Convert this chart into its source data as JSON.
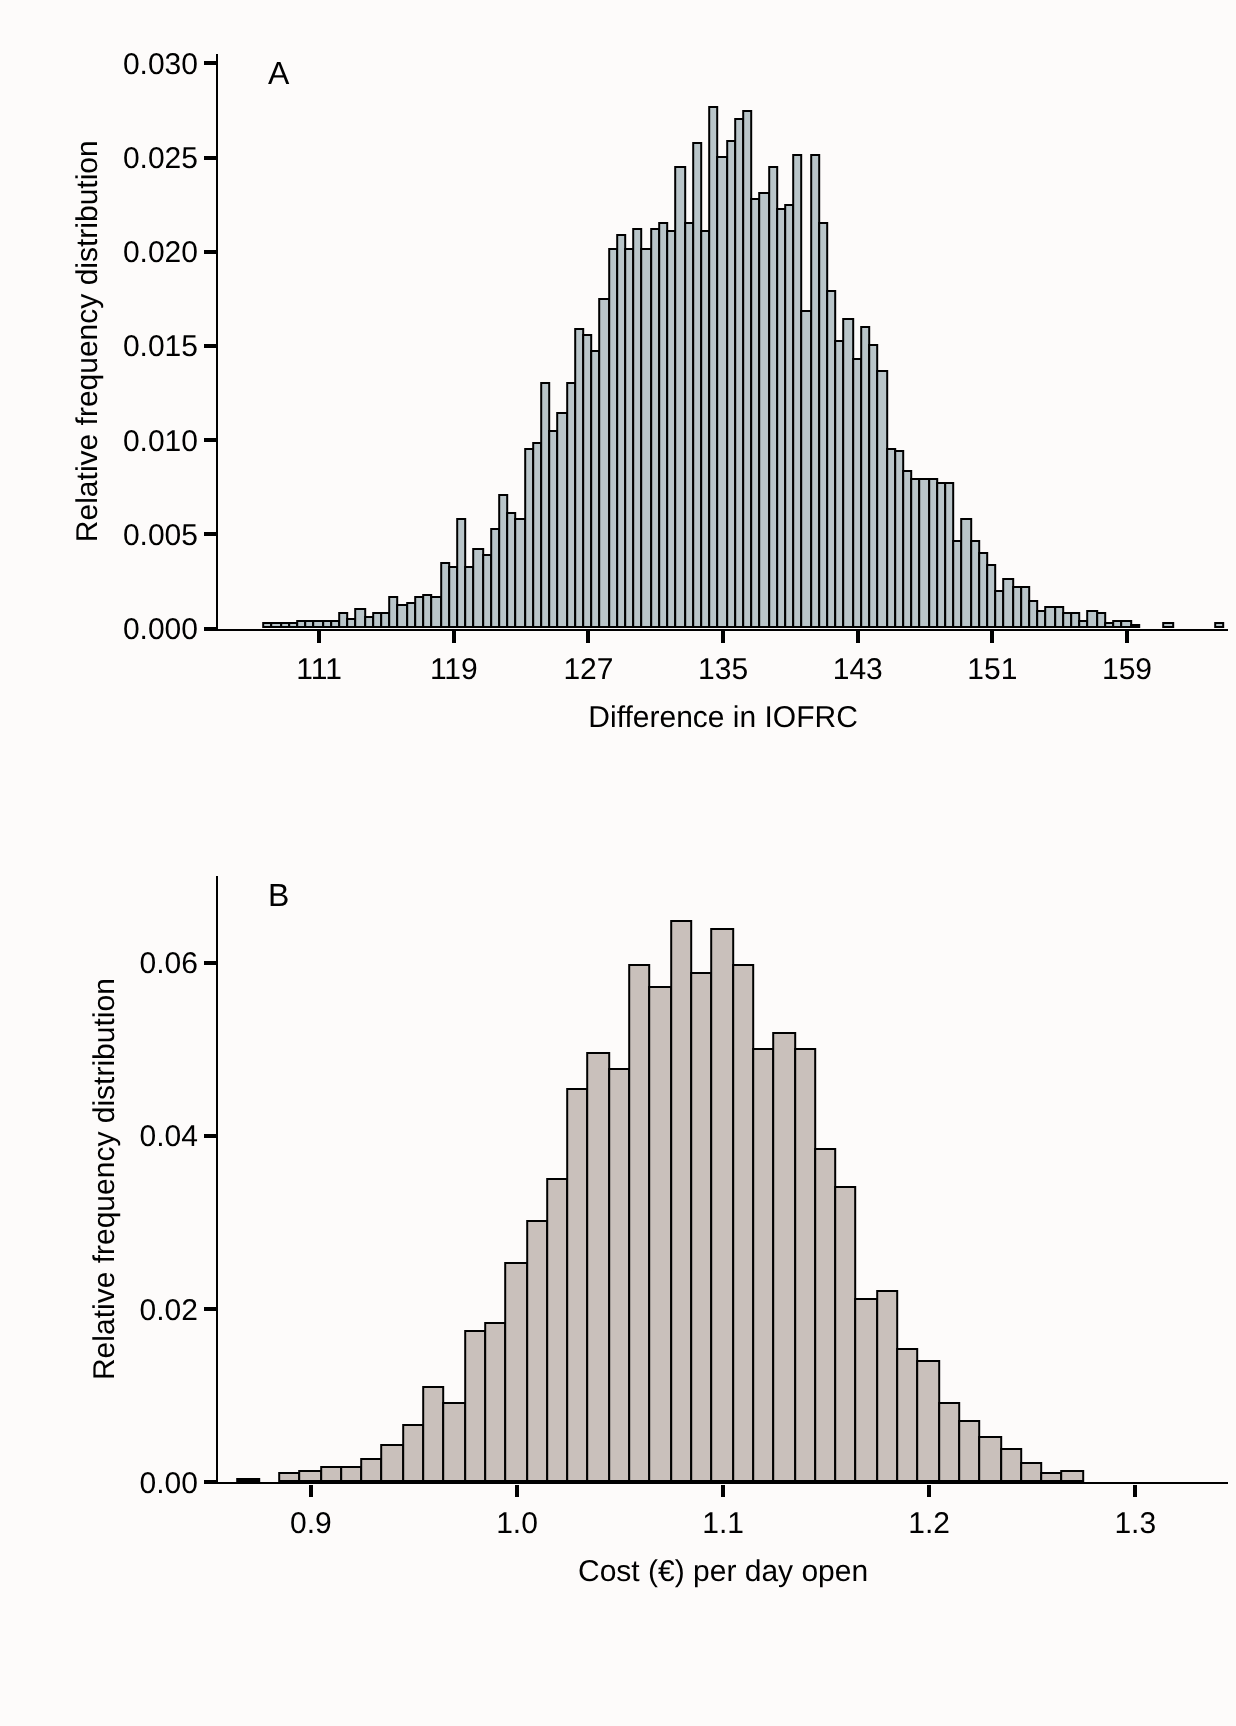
{
  "chart_data": [
    {
      "type": "histogram",
      "xlabel": "Difference in IOFRC",
      "ylabel": "Relative frequency distribution",
      "annotations": [
        "A"
      ],
      "color": "#b9c5c9",
      "bins": [
        107.75,
        108.25,
        108.75,
        109.25,
        109.75,
        110.25,
        110.75,
        111.25,
        111.75,
        112.25,
        112.75,
        113.25,
        113.75,
        114.25,
        114.75,
        115.25,
        115.75,
        116.25,
        116.75,
        117.25,
        117.75,
        118.25,
        118.75,
        119.25,
        119.75,
        120.25,
        120.75,
        121.25,
        121.75,
        122.25,
        122.75,
        123.25,
        123.75,
        124.25,
        124.75,
        125.25,
        125.75,
        126.25,
        126.75,
        127.25,
        127.75,
        128.25,
        128.75,
        129.25,
        129.75,
        130.25,
        130.75,
        131.25,
        131.75,
        132.25,
        132.75,
        133.25,
        133.75,
        134.25,
        134.75,
        135.25,
        135.75,
        136.25,
        136.75,
        137.25,
        137.75,
        138.25,
        138.75,
        139.25,
        139.75,
        140.25,
        140.75,
        141.25,
        141.75,
        142.25,
        142.75,
        143.25,
        143.75,
        144.25,
        144.75,
        145.25,
        145.75,
        146.25,
        146.75,
        147.25,
        147.75,
        148.25,
        148.75,
        149.25,
        149.75,
        150.25,
        150.75,
        151.25,
        151.75,
        152.25,
        152.75,
        153.25,
        153.75,
        154.25,
        154.75,
        155.25,
        155.75,
        156.25,
        156.75,
        157.25,
        157.75,
        158.25,
        158.75,
        159.25,
        159.75,
        161.25,
        161.75,
        164.25,
        164.75
      ],
      "values": [
        0.0002,
        0.0002,
        0.0002,
        0.0002,
        0.0004,
        0.0003,
        0.0004,
        0.0004,
        0.0003,
        0.0008,
        0.0005,
        0.001,
        0.0006,
        0.0008,
        0.0008,
        0.0016,
        0.0012,
        0.0013,
        0.0016,
        0.0017,
        0.0016,
        0.0034,
        0.0032,
        0.0058,
        0.0032,
        0.0042,
        0.0038,
        0.0052,
        0.007,
        0.0061,
        0.0058,
        0.0095,
        0.0098,
        0.013,
        0.0104,
        0.0114,
        0.013,
        0.0158,
        0.0155,
        0.0147,
        0.0174,
        0.0201,
        0.0208,
        0.0201,
        0.0212,
        0.0201,
        0.0212,
        0.0215,
        0.0211,
        0.0245,
        0.0215,
        0.0257,
        0.0211,
        0.0276,
        0.025,
        0.0258,
        0.027,
        0.0274,
        0.0228,
        0.0231,
        0.0245,
        0.0222,
        0.0224,
        0.0251,
        0.0168,
        0.0251,
        0.0215,
        0.0179,
        0.0152,
        0.0164,
        0.0143,
        0.016,
        0.015,
        0.0136,
        0.0095,
        0.0094,
        0.0083,
        0.0079,
        0.0079,
        0.0079,
        0.0077,
        0.0077,
        0.0046,
        0.0058,
        0.0046,
        0.004,
        0.0033,
        0.0019,
        0.0026,
        0.0022,
        0.0022,
        0.0014,
        0.0009,
        0.0011,
        0.0011,
        0.0008,
        0.0008,
        0.0003,
        0.0009,
        0.0008,
        0.0002,
        0.0003,
        0.0003,
        0.0001,
        0,
        0.0002,
        0,
        0.0002
      ],
      "xlim": [
        105,
        165
      ],
      "xticks": [
        111,
        119,
        127,
        135,
        143,
        151,
        159
      ],
      "ylim": [
        0,
        0.0305
      ],
      "yticks": [
        {
          "value": 0,
          "label": "0.000"
        },
        {
          "value": 0.005,
          "label": "0.005"
        },
        {
          "value": 0.01,
          "label": "0.010"
        },
        {
          "value": 0.015,
          "label": "0.015"
        },
        {
          "value": 0.02,
          "label": "0.020"
        },
        {
          "value": 0.025,
          "label": "0.025"
        },
        {
          "value": 0.03,
          "label": "0.030"
        }
      ]
    },
    {
      "type": "histogram",
      "xlabel": "Cost (€) per day open",
      "ylabel": "Relative frequency distribution",
      "annotations": [
        "B"
      ],
      "color": "#c9c0bb",
      "bins": [
        0.865,
        0.875,
        0.885,
        0.895,
        0.905,
        0.915,
        0.925,
        0.935,
        0.945,
        0.955,
        0.965,
        0.975,
        0.985,
        0.995,
        1.005,
        1.015,
        1.025,
        1.035,
        1.045,
        1.055,
        1.065,
        1.075,
        1.085,
        1.095,
        1.105,
        1.115,
        1.125,
        1.135,
        1.145,
        1.155,
        1.165,
        1.175,
        1.185,
        1.195,
        1.205,
        1.215,
        1.225,
        1.235,
        1.245,
        1.255,
        1.265,
        1.275
      ],
      "values": [
        0.0003,
        0,
        0.0009,
        0.0011,
        0.0016,
        0.0016,
        0.0026,
        0.0043,
        0.0065,
        0.011,
        0.0091,
        0.0174,
        0.0182,
        0.0252,
        0.0301,
        0.035,
        0.0454,
        0.0495,
        0.0476,
        0.0597,
        0.0571,
        0.0648,
        0.0588,
        0.0638,
        0.0595,
        0.05,
        0.0517,
        0.05,
        0.0383,
        0.0341,
        0.0211,
        0.0221,
        0.0154,
        0.0138,
        0.0091,
        0.007,
        0.0051,
        0.0037,
        0.0021,
        0.0009,
        0.0013
      ],
      "xlim": [
        0.855,
        1.345
      ],
      "xticks": [
        0.9,
        {
          "value": 1.0,
          "label": "1.0"
        },
        1.1,
        1.2,
        1.3
      ],
      "ylim": [
        0,
        0.07
      ],
      "yticks": [
        {
          "value": 0,
          "label": "0.00"
        },
        {
          "value": 0.02,
          "label": "0.02"
        },
        {
          "value": 0.04,
          "label": "0.04"
        },
        {
          "value": 0.06,
          "label": "0.06"
        }
      ]
    }
  ]
}
